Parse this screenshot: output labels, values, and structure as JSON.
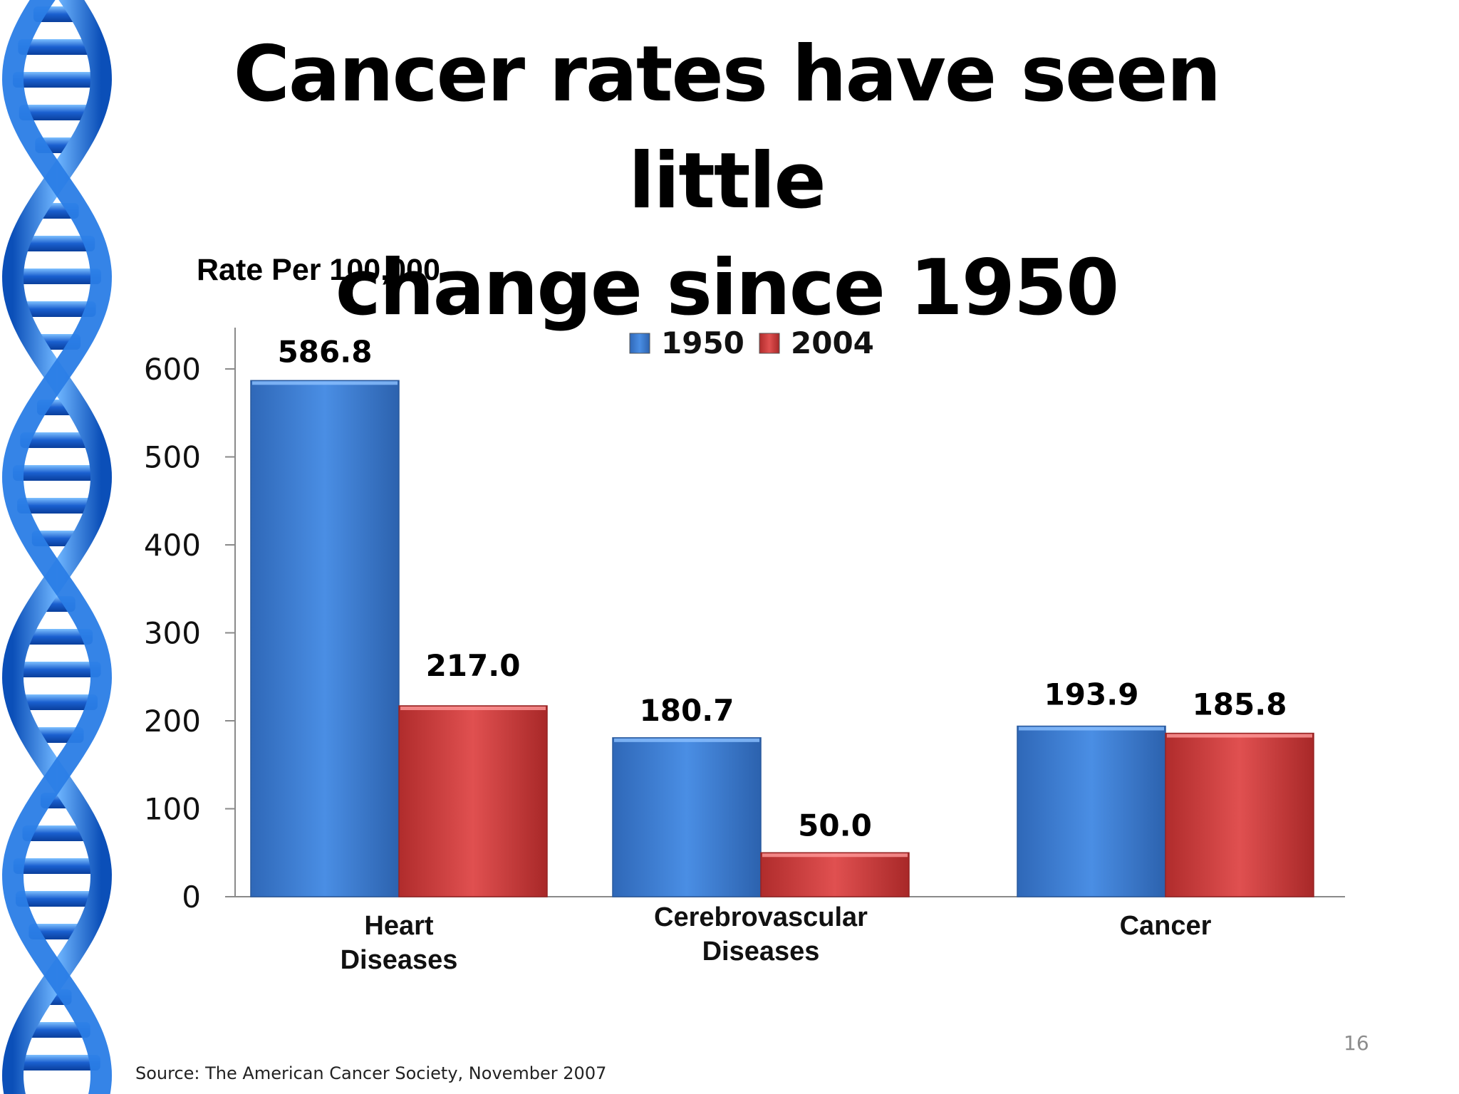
{
  "slide": {
    "title_line1": "Cancer rates have seen little",
    "title_line2": "change since 1950",
    "source": "Source:  The American Cancer Society, November 2007",
    "page_number": "16"
  },
  "colors": {
    "series_1950": "#3d7fd6",
    "series_2004": "#d43c3c",
    "dna_blue": "#1f6fe0"
  },
  "chart_data": {
    "type": "bar",
    "title": "",
    "xlabel": "",
    "ylabel": "Rate Per 100,000",
    "ylim": [
      0,
      650
    ],
    "yticks": [
      "0",
      "100",
      "200",
      "300",
      "400",
      "500",
      "600"
    ],
    "categories": [
      [
        "Heart",
        "Diseases"
      ],
      [
        "Cerebrovascular",
        "Diseases"
      ],
      [
        "Cancer"
      ]
    ],
    "series": [
      {
        "name": "1950",
        "values": [
          586.8,
          180.7,
          193.9
        ],
        "labels": [
          "586.8",
          "180.7",
          "193.9"
        ]
      },
      {
        "name": "2004",
        "values": [
          217.0,
          50.0,
          185.8
        ],
        "labels": [
          "217.0",
          "50.0",
          "185.8"
        ]
      }
    ],
    "legend_position": "top-center",
    "grid": false
  }
}
